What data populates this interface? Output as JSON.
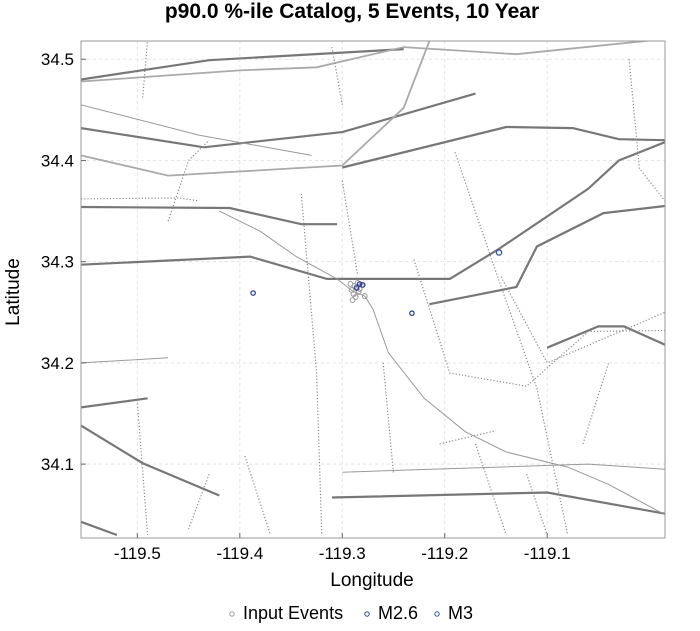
{
  "chart_data": {
    "type": "scatter",
    "title": "p90.0 %-ile Catalog, 5 Events, 10 Year",
    "xlabel": "Longitude",
    "ylabel": "Latitude",
    "xlim": [
      -119.555,
      -118.985
    ],
    "ylim": [
      34.027,
      34.518
    ],
    "xticks": [
      -119.5,
      -119.4,
      -119.3,
      -119.2,
      -119.1
    ],
    "yticks": [
      34.1,
      34.2,
      34.3,
      34.4,
      34.5
    ],
    "xtick_labels": [
      "-119.5",
      "-119.4",
      "-119.3",
      "-119.2",
      "-119.1"
    ],
    "ytick_labels": [
      "34.1",
      "34.2",
      "34.3",
      "34.4",
      "34.5"
    ],
    "grid": true,
    "legend_position": "bottom",
    "series": [
      {
        "name": "Input Events",
        "color": "#999999",
        "points": [
          [
            -119.288,
            34.276
          ],
          [
            -119.291,
            34.272
          ],
          [
            -119.286,
            34.275
          ],
          [
            -119.289,
            34.268
          ],
          [
            -119.284,
            34.27
          ],
          [
            -119.287,
            34.265
          ],
          [
            -119.29,
            34.262
          ],
          [
            -119.283,
            34.273
          ],
          [
            -119.285,
            34.279
          ],
          [
            -119.278,
            34.266
          ],
          [
            -119.292,
            34.278
          ],
          [
            -119.281,
            34.277
          ]
        ]
      },
      {
        "name": "M2.6",
        "color": "#334499",
        "points": [
          [
            -119.387,
            34.269
          ],
          [
            -119.232,
            34.249
          ],
          [
            -119.283,
            34.278
          ],
          [
            -119.286,
            34.274
          ],
          [
            -119.28,
            34.277
          ]
        ]
      },
      {
        "name": "M3",
        "color": "#3355aa",
        "points": [
          [
            -119.147,
            34.309
          ]
        ]
      }
    ]
  },
  "legend": {
    "items": [
      {
        "label": "Input Events",
        "color": "#999999"
      },
      {
        "label": "M2.6",
        "color": "#334499"
      },
      {
        "label": "M3",
        "color": "#3355aa"
      }
    ]
  },
  "map_lines": {
    "faults_dark": [
      [
        [
          -119.555,
          34.48
        ],
        [
          -119.43,
          34.499
        ],
        [
          -119.24,
          34.51
        ]
      ],
      [
        [
          -119.555,
          34.432
        ],
        [
          -119.435,
          34.413
        ],
        [
          -119.3,
          34.428
        ],
        [
          -119.17,
          34.466
        ]
      ],
      [
        [
          -119.555,
          34.354
        ],
        [
          -119.41,
          34.353
        ],
        [
          -119.34,
          34.337
        ],
        [
          -119.305,
          34.337
        ]
      ],
      [
        [
          -119.555,
          34.297
        ],
        [
          -119.39,
          34.305
        ],
        [
          -119.315,
          34.283
        ],
        [
          -119.195,
          34.283
        ],
        [
          -119.148,
          34.312
        ],
        [
          -119.06,
          34.372
        ],
        [
          -119.03,
          34.4
        ],
        [
          -118.985,
          34.418
        ]
      ],
      [
        [
          -119.3,
          34.393
        ],
        [
          -119.14,
          34.433
        ],
        [
          -119.075,
          34.432
        ],
        [
          -119.03,
          34.421
        ],
        [
          -118.985,
          34.42
        ]
      ],
      [
        [
          -119.215,
          34.258
        ],
        [
          -119.13,
          34.275
        ],
        [
          -119.11,
          34.315
        ],
        [
          -119.045,
          34.348
        ],
        [
          -118.985,
          34.355
        ]
      ],
      [
        [
          -119.555,
          34.156
        ],
        [
          -119.49,
          34.165
        ]
      ],
      [
        [
          -119.555,
          34.138
        ],
        [
          -119.495,
          34.101
        ],
        [
          -119.42,
          34.069
        ]
      ],
      [
        [
          -119.555,
          34.043
        ],
        [
          -119.52,
          34.03
        ]
      ],
      [
        [
          -119.1,
          34.215
        ],
        [
          -119.05,
          34.236
        ],
        [
          -119.025,
          34.236
        ],
        [
          -118.985,
          34.218
        ]
      ],
      [
        [
          -119.31,
          34.067
        ],
        [
          -119.1,
          34.072
        ],
        [
          -118.985,
          34.051
        ]
      ]
    ],
    "faults_light": [
      [
        [
          -119.555,
          34.478
        ],
        [
          -119.4,
          34.489
        ],
        [
          -119.325,
          34.492
        ],
        [
          -119.24,
          34.512
        ],
        [
          -119.13,
          34.505
        ],
        [
          -118.985,
          34.52
        ]
      ],
      [
        [
          -119.555,
          34.405
        ],
        [
          -119.47,
          34.385
        ],
        [
          -119.3,
          34.395
        ],
        [
          -119.24,
          34.452
        ],
        [
          -119.215,
          34.518
        ]
      ]
    ],
    "coast": [
      [
        [
          -119.42,
          34.35
        ],
        [
          -119.38,
          34.33
        ],
        [
          -119.345,
          34.305
        ],
        [
          -119.305,
          34.283
        ],
        [
          -119.29,
          34.271
        ],
        [
          -119.278,
          34.266
        ],
        [
          -119.27,
          34.253
        ],
        [
          -119.255,
          34.21
        ],
        [
          -119.22,
          34.165
        ],
        [
          -119.18,
          34.132
        ],
        [
          -119.14,
          34.112
        ],
        [
          -119.08,
          34.097
        ],
        [
          -119.04,
          34.08
        ],
        [
          -118.985,
          34.05
        ]
      ],
      [
        [
          -119.555,
          34.455
        ],
        [
          -119.44,
          34.425
        ],
        [
          -119.33,
          34.405
        ]
      ],
      [
        [
          -119.3,
          34.092
        ],
        [
          -119.06,
          34.1
        ],
        [
          -118.985,
          34.095
        ]
      ],
      [
        [
          -119.555,
          34.2
        ],
        [
          -119.47,
          34.205
        ]
      ]
    ],
    "dotted": [
      [
        [
          -119.555,
          34.362
        ],
        [
          -119.46,
          34.363
        ],
        [
          -119.44,
          34.36
        ]
      ],
      [
        [
          -119.47,
          34.34
        ],
        [
          -119.45,
          34.4
        ],
        [
          -119.43,
          34.42
        ]
      ],
      [
        [
          -119.49,
          34.52
        ],
        [
          -119.495,
          34.46
        ]
      ],
      [
        [
          -119.31,
          34.512
        ],
        [
          -119.3,
          34.455
        ]
      ],
      [
        [
          -119.5,
          34.16
        ],
        [
          -119.49,
          34.03
        ]
      ],
      [
        [
          -119.395,
          34.108
        ],
        [
          -119.37,
          34.03
        ]
      ],
      [
        [
          -119.3,
          34.38
        ],
        [
          -119.285,
          34.287
        ]
      ],
      [
        [
          -119.34,
          34.367
        ],
        [
          -119.325,
          34.19
        ],
        [
          -119.32,
          34.03
        ]
      ],
      [
        [
          -119.205,
          34.12
        ],
        [
          -119.15,
          34.133
        ]
      ],
      [
        [
          -119.065,
          34.12
        ],
        [
          -119.04,
          34.2
        ]
      ],
      [
        [
          -119.19,
          34.408
        ],
        [
          -119.15,
          34.29
        ],
        [
          -119.11,
          34.175
        ],
        [
          -119.08,
          34.03
        ]
      ],
      [
        [
          -119.145,
          34.285
        ],
        [
          -119.1,
          34.2
        ],
        [
          -118.985,
          34.25
        ]
      ],
      [
        [
          -119.23,
          34.302
        ],
        [
          -119.195,
          34.19
        ],
        [
          -119.12,
          34.177
        ],
        [
          -119.06,
          34.231
        ],
        [
          -118.985,
          34.232
        ]
      ],
      [
        [
          -119.02,
          34.5
        ],
        [
          -119.01,
          34.392
        ],
        [
          -118.985,
          34.36
        ]
      ],
      [
        [
          -119.43,
          34.09
        ],
        [
          -119.45,
          34.036
        ]
      ],
      [
        [
          -119.26,
          34.2
        ],
        [
          -119.25,
          34.09
        ]
      ],
      [
        [
          -119.17,
          34.12
        ],
        [
          -119.14,
          34.03
        ]
      ],
      [
        [
          -119.12,
          34.09
        ],
        [
          -119.1,
          34.03
        ]
      ]
    ]
  }
}
